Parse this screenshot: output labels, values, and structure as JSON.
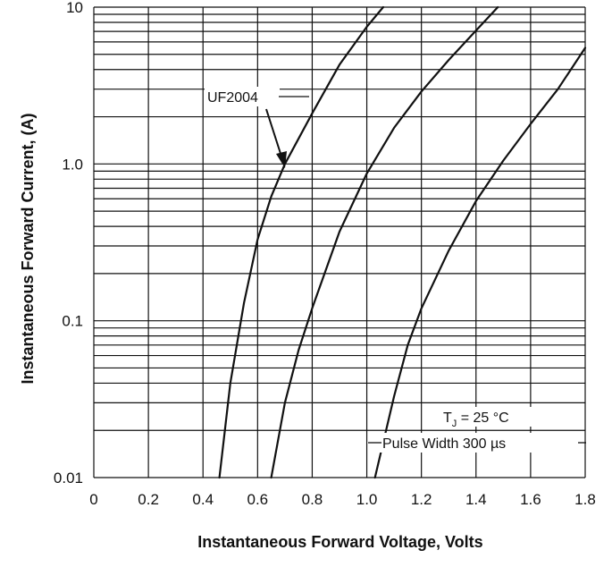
{
  "chart_data": {
    "type": "line",
    "title": "",
    "xlabel": "Instantaneous Forward Voltage, Volts",
    "ylabel": "Instantaneous Forward Current, (A)",
    "xlim": [
      0,
      1.8
    ],
    "ylim": [
      0.01,
      10
    ],
    "y_scale": "log",
    "grid": true,
    "x_ticks": [
      "0",
      "0.2",
      "0.4",
      "0.6",
      "0.8",
      "1.0",
      "1.2",
      "1.4",
      "1.6",
      "1.8"
    ],
    "y_ticks": [
      "0.01",
      "0.1",
      "1.0",
      "10"
    ],
    "series": [
      {
        "x": [
          0.46,
          0.5,
          0.55,
          0.6,
          0.65,
          0.7,
          0.8,
          0.9,
          1.0,
          1.06
        ],
        "y": [
          0.01,
          0.04,
          0.13,
          0.33,
          0.62,
          1.0,
          2.1,
          4.3,
          7.5,
          10
        ]
      },
      {
        "x": [
          0.65,
          0.7,
          0.75,
          0.8,
          0.9,
          1.0,
          1.1,
          1.2,
          1.3,
          1.4,
          1.48
        ],
        "y": [
          0.01,
          0.03,
          0.065,
          0.12,
          0.37,
          0.87,
          1.7,
          2.9,
          4.6,
          7.1,
          10
        ]
      },
      {
        "x": [
          1.03,
          1.1,
          1.15,
          1.2,
          1.3,
          1.4,
          1.5,
          1.6,
          1.7,
          1.8
        ],
        "y": [
          0.01,
          0.033,
          0.07,
          0.12,
          0.28,
          0.58,
          1.05,
          1.8,
          3.0,
          5.5
        ]
      }
    ],
    "annotations": [
      {
        "text": "UF2004",
        "points_to_series": 0
      },
      {
        "text": "T",
        "sub": "J",
        "suffix": " = 25 °C"
      },
      {
        "text": "Pulse Width 300 µs"
      }
    ],
    "colors": {
      "line": "#111111",
      "grid": "#111111"
    }
  }
}
